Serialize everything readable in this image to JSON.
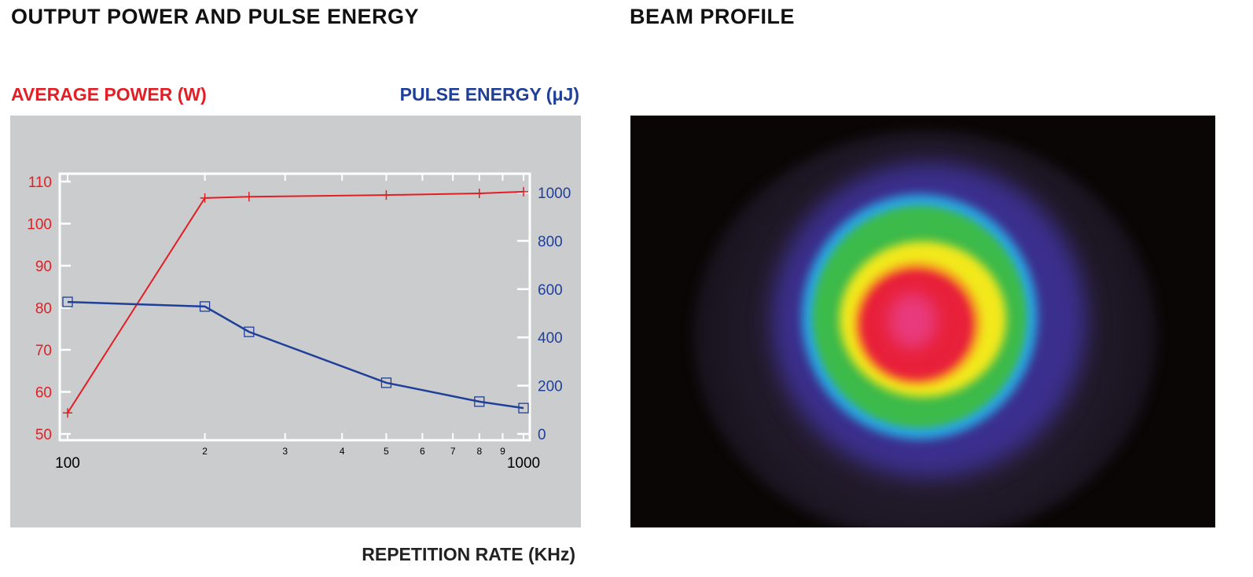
{
  "left_title": "OUTPUT POWER AND PULSE ENERGY",
  "right_title": "BEAM PROFILE",
  "chart_data": {
    "type": "line",
    "xlabel": "REPETITION RATE (KHz)",
    "xscale": "log",
    "xlim": [
      100,
      1000
    ],
    "x_tick_labels": [
      "100",
      "2",
      "3",
      "4",
      "5",
      "6",
      "7",
      "8",
      "9",
      "1000"
    ],
    "x_tick_values": [
      100,
      200,
      300,
      400,
      500,
      600,
      700,
      800,
      900,
      1000
    ],
    "ylabel_left": "AVERAGE POWER (W)",
    "ylabel_right": "PULSE ENERGY (μJ)",
    "ylim_left": [
      48,
      112
    ],
    "ylim_right": [
      -10,
      1078
    ],
    "y_left_ticks": [
      50,
      60,
      70,
      80,
      90,
      100,
      110
    ],
    "y_right_ticks": [
      0,
      200,
      400,
      600,
      800,
      1000
    ],
    "series": [
      {
        "name": "Average Power (W)",
        "axis": "left",
        "color": "#e31e24",
        "marker": "plus",
        "x": [
          100,
          200,
          250,
          500,
          800,
          1000
        ],
        "y": [
          55.0,
          106.1,
          106.4,
          106.8,
          107.2,
          107.6
        ]
      },
      {
        "name": "Pulse Energy (μJ)",
        "axis": "right",
        "color": "#1f3f99",
        "marker": "square",
        "x": [
          100,
          200,
          250,
          500,
          800,
          1000
        ],
        "y": [
          547,
          528,
          423,
          212,
          134,
          107
        ]
      }
    ]
  }
}
